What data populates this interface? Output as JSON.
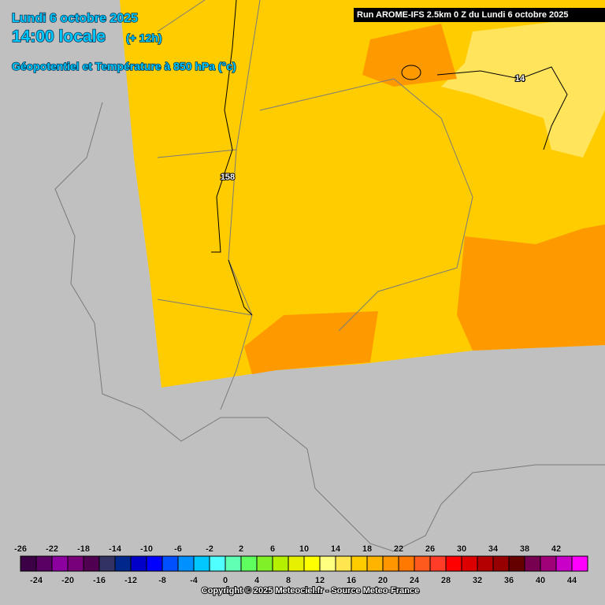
{
  "header": {
    "date": "Lundi 6 octobre 2025",
    "time": "14:00 locale",
    "lead": "(+ 12h)",
    "field": "Géopotentiel et Température à 850 hPa (°c)",
    "run": "Run AROME-IFS 2.5km 0 Z du Lundi 6 octobre 2025"
  },
  "contours": [
    "158",
    "14"
  ],
  "legend": {
    "labels": [
      -26,
      -24,
      -22,
      -20,
      -18,
      -16,
      -14,
      -12,
      -10,
      -8,
      -6,
      -4,
      -2,
      0,
      2,
      4,
      6,
      8,
      10,
      12,
      14,
      16,
      18,
      20,
      22,
      24,
      26,
      28,
      30,
      32,
      34,
      36,
      38,
      40,
      42,
      44
    ],
    "colors": [
      "#3c0046",
      "#5a0064",
      "#8c00a0",
      "#780078",
      "#500050",
      "#323264",
      "#00288c",
      "#0000c8",
      "#0000ff",
      "#0050ff",
      "#0090ff",
      "#00c8ff",
      "#50ffff",
      "#60ffb4",
      "#60ff60",
      "#80f028",
      "#b4f000",
      "#e6f000",
      "#ffff00",
      "#ffff80",
      "#ffe650",
      "#ffcc00",
      "#ffb400",
      "#ff9600",
      "#ff7800",
      "#ff5a1e",
      "#ff3c28",
      "#ff0000",
      "#dc0000",
      "#b40000",
      "#960000",
      "#640000",
      "#780050",
      "#a00078",
      "#c800c8",
      "#ff00ff"
    ]
  },
  "footer": "Copyright © 2025 Meteociel.fr - Source Meteo-France"
}
